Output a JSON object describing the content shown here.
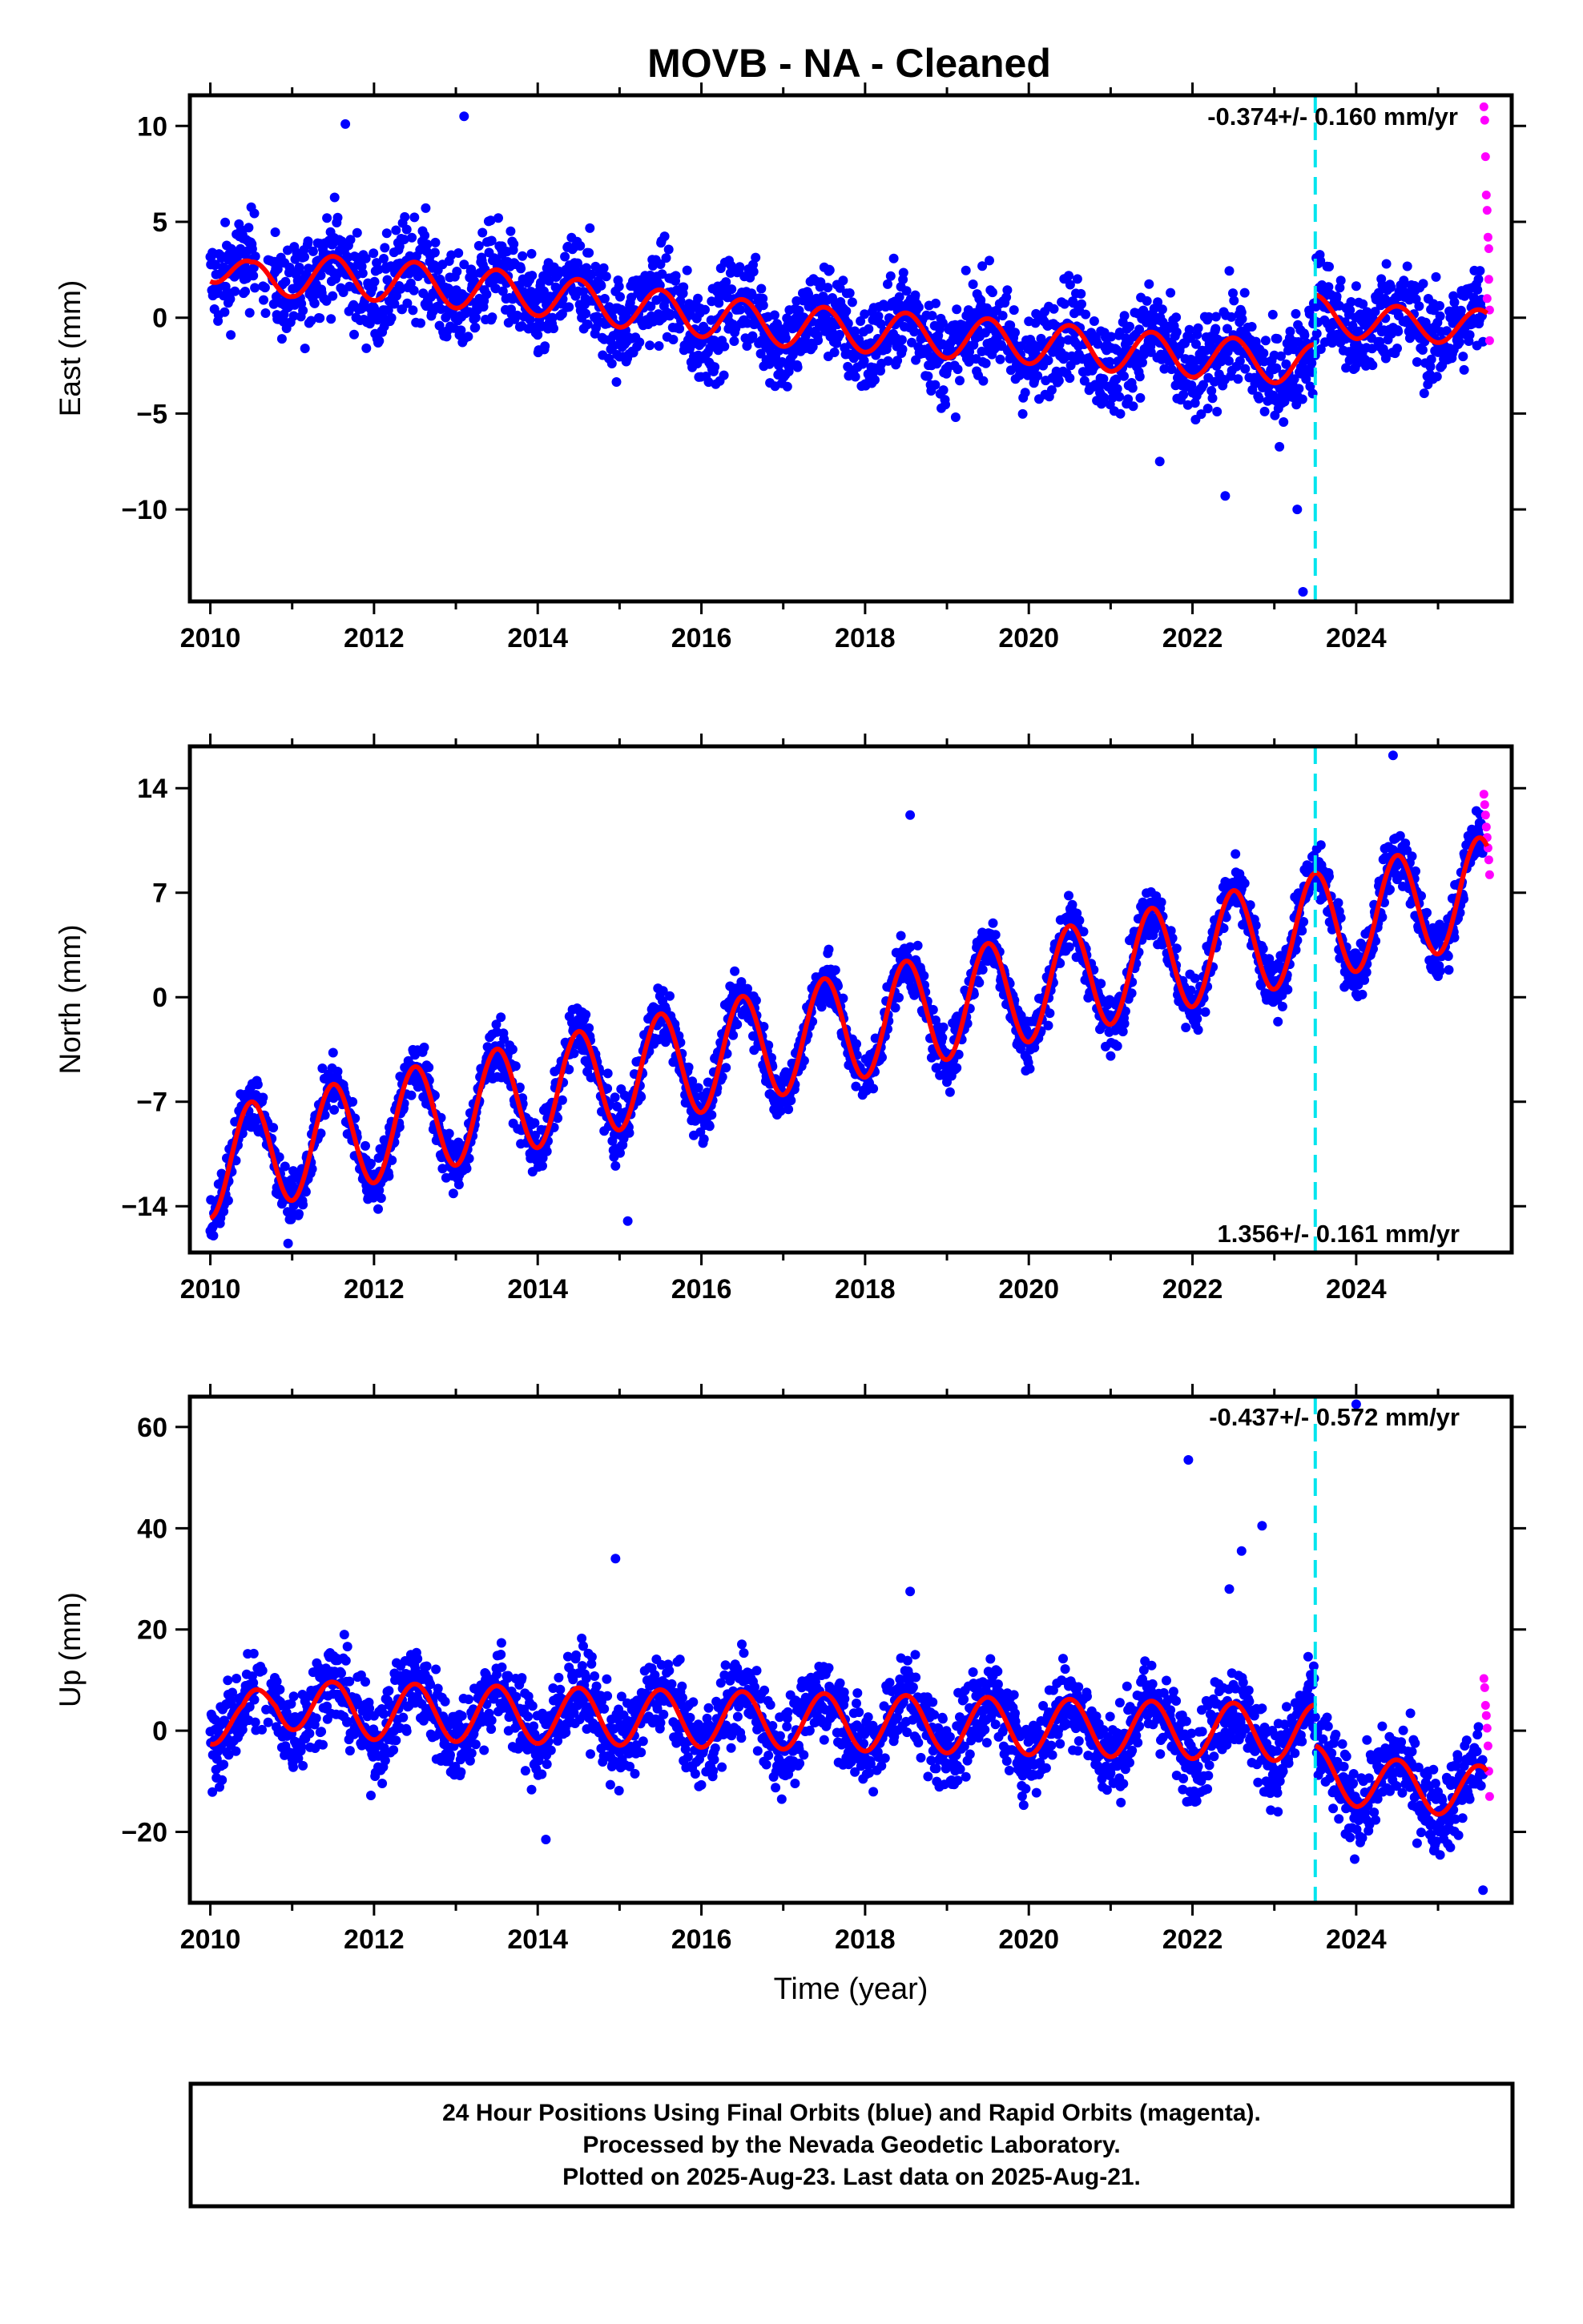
{
  "colors": {
    "final_orbits": "#0000ff",
    "rapid_orbits": "#ff00ff",
    "model_fit": "#ff0000",
    "equipment_change": "#00e5ee",
    "frame": "#000000"
  },
  "title": "MOVB  - NA - Cleaned",
  "x_axis": {
    "label": "Time (year)",
    "range": [
      2009.75,
      2025.9
    ],
    "ticks": [
      "2010",
      "2012",
      "2014",
      "2016",
      "2018",
      "2020",
      "2022",
      "2024"
    ]
  },
  "equipment_change_year": 2023.5,
  "footer": {
    "line1": "24 Hour Positions Using Final Orbits (blue) and Rapid Orbits (magenta).",
    "line2": "Processed by the Nevada Geodetic Laboratory.",
    "line3": "Plotted on 2025-Aug-23. Last data on 2025-Aug-21."
  },
  "chart_data": [
    {
      "type": "scatter",
      "panel": "east",
      "ylabel": "East (mm)",
      "ylim": [
        -14.8,
        11.6
      ],
      "yticks": [
        10,
        5,
        0,
        -5,
        -10
      ],
      "ytick_labels": [
        "10",
        "5",
        "0",
        "−5",
        "−10"
      ],
      "rate": "-0.374+/- 0.160 mm/yr",
      "rate_position": "top-right",
      "fit_model": {
        "name": "Model fit",
        "segments": [
          {
            "x": [
              2010.0,
              2010.5,
              2011.0,
              2012.0,
              2013.0,
              2014.0,
              2015.0,
              2016.0,
              2017.0,
              2018.0,
              2019.0,
              2020.0,
              2021.0,
              2022.0,
              2023.0,
              2023.5
            ],
            "mean": [
              3.0,
              1.8,
              2.2,
              2.0,
              1.6,
              1.2,
              0.6,
              0.1,
              -0.4,
              -0.7,
              -1.0,
              -1.3,
              -1.7,
              -2.0,
              -2.3,
              -2.5
            ],
            "annual_amplitude": 1.1
          },
          {
            "x": [
              2023.5,
              2024.0,
              2025.0,
              2025.6
            ],
            "mean": [
              0.3,
              -0.2,
              -0.4,
              -0.5
            ],
            "annual_amplitude": 0.9
          }
        ]
      },
      "final_orbits": {
        "name": "Final Orbits",
        "x_range": [
          2010.0,
          2025.55
        ],
        "scatter_spread": 1.8,
        "outliers": [
          {
            "x": 2011.65,
            "y": 10.1
          },
          {
            "x": 2013.1,
            "y": 10.5
          },
          {
            "x": 2023.28,
            "y": -10.0
          },
          {
            "x": 2023.35,
            "y": -14.3
          },
          {
            "x": 2021.6,
            "y": -7.5
          },
          {
            "x": 2022.4,
            "y": -9.3
          }
        ]
      },
      "rapid_orbits": {
        "name": "Rapid Orbits",
        "x": [
          2025.56,
          2025.57,
          2025.58,
          2025.59,
          2025.6,
          2025.61,
          2025.62,
          2025.62,
          2025.63,
          2025.63,
          2025.6
        ],
        "y": [
          11.0,
          10.3,
          8.4,
          6.4,
          5.6,
          4.2,
          3.6,
          2.0,
          0.4,
          -1.2,
          1.0
        ]
      }
    },
    {
      "type": "scatter",
      "panel": "north",
      "ylabel": "North (mm)",
      "ylim": [
        -17.1,
        16.8
      ],
      "yticks": [
        14,
        7,
        0,
        -7,
        -14
      ],
      "ytick_labels": [
        "14",
        "7",
        "0",
        "−7",
        "−14"
      ],
      "rate": "1.356+/- 0.161 mm/yr",
      "rate_position": "bottom-right",
      "fit_model": {
        "name": "Model fit",
        "segments": [
          {
            "x": [
              2010.0,
              2025.6
            ],
            "mean": [
              -11.2,
              7.2
            ],
            "annual_amplitude": 3.6
          }
        ]
      },
      "final_orbits": {
        "name": "Final Orbits",
        "x_range": [
          2010.0,
          2025.55
        ],
        "scatter_spread": 1.3,
        "outliers": [
          {
            "x": 2015.1,
            "y": -15.0
          },
          {
            "x": 2014.95,
            "y": -11.3
          },
          {
            "x": 2018.55,
            "y": 12.2
          },
          {
            "x": 2024.45,
            "y": 16.2
          },
          {
            "x": 2010.95,
            "y": -16.5
          }
        ]
      },
      "rapid_orbits": {
        "name": "Rapid Orbits",
        "x": [
          2025.56,
          2025.57,
          2025.58,
          2025.59,
          2025.6,
          2025.61,
          2025.62,
          2025.63
        ],
        "y": [
          13.6,
          12.9,
          12.2,
          11.4,
          10.7,
          10.0,
          9.2,
          8.2
        ]
      }
    },
    {
      "type": "scatter",
      "panel": "up",
      "ylabel": "Up (mm)",
      "ylim": [
        -34,
        66
      ],
      "yticks": [
        60,
        40,
        20,
        0,
        -20
      ],
      "ytick_labels": [
        "60",
        "40",
        "20",
        "0",
        "−20"
      ],
      "rate": "-0.437+/- 0.572 mm/yr",
      "rate_position": "top-right",
      "fit_model": {
        "name": "Model fit",
        "segments": [
          {
            "x": [
              2010.0,
              2010.4,
              2010.8,
              2011.5,
              2023.5
            ],
            "mean": [
              3.0,
              0.5,
              6.5,
              4.0,
              -0.5
            ],
            "annual_amplitude": 5.6
          },
          {
            "x": [
              2023.5,
              2024.0,
              2025.0,
              2025.6
            ],
            "mean": [
              -8.0,
              -10.0,
              -11.5,
              -12.0
            ],
            "annual_amplitude": 5.0
          }
        ]
      },
      "final_orbits": {
        "name": "Final Orbits",
        "x_range": [
          2010.0,
          2025.55
        ],
        "scatter_spread": 6.0,
        "outliers": [
          {
            "x": 2021.95,
            "y": 53.5
          },
          {
            "x": 2024.0,
            "y": 64.5
          },
          {
            "x": 2022.85,
            "y": 40.5
          },
          {
            "x": 2022.6,
            "y": 35.5
          },
          {
            "x": 2014.95,
            "y": 34.0
          },
          {
            "x": 2022.45,
            "y": 28.0
          },
          {
            "x": 2018.55,
            "y": 27.5
          },
          {
            "x": 2014.1,
            "y": -21.5
          },
          {
            "x": 2025.55,
            "y": -31.5
          }
        ]
      },
      "rapid_orbits": {
        "name": "Rapid Orbits",
        "x": [
          2025.56,
          2025.57,
          2025.58,
          2025.59,
          2025.6,
          2025.61,
          2025.62,
          2025.63
        ],
        "y": [
          10.3,
          8.5,
          5.0,
          3.0,
          0.5,
          -3.0,
          -8.0,
          -13.0
        ]
      }
    }
  ]
}
